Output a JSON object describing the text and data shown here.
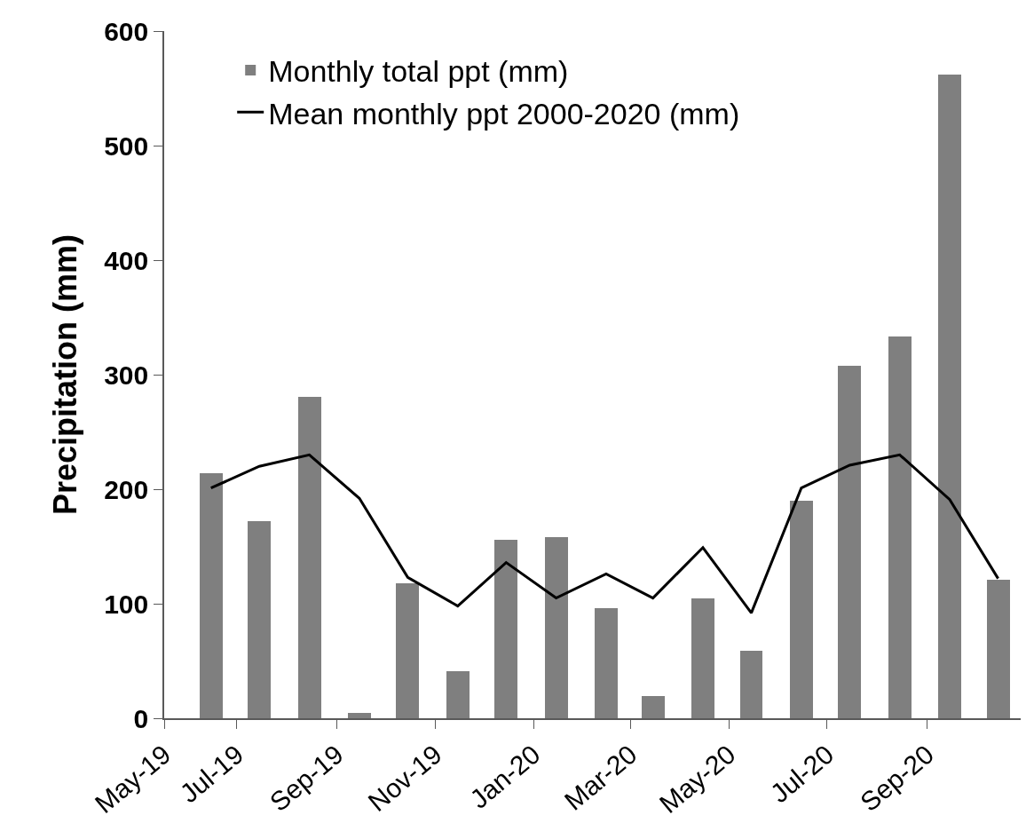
{
  "chart_data": {
    "type": "bar",
    "ylabel": "Precipitation (mm)",
    "x": [
      "2019-06-15",
      "2019-07-15",
      "2019-08-15",
      "2019-09-15",
      "2019-10-15",
      "2019-11-15",
      "2019-12-15",
      "2020-01-15",
      "2020-02-15",
      "2020-03-15",
      "2020-04-15",
      "2020-05-15",
      "2020-06-15",
      "2020-07-15",
      "2020-08-15",
      "2020-09-15",
      "2020-10-15"
    ],
    "series": [
      {
        "name": "Monthly total ppt (mm)",
        "color": "#7f7f7f",
        "values": [
          214,
          172,
          281,
          5,
          118,
          41,
          156,
          158,
          96,
          19,
          105,
          59,
          190,
          308,
          333,
          562,
          121
        ]
      },
      {
        "name": "Mean monthly ppt 2000-2020 (mm)",
        "type": "line",
        "color": "#000000",
        "line_style": "solid",
        "values": [
          201,
          220,
          230,
          192,
          123,
          98,
          136,
          105,
          126,
          105,
          149,
          92,
          201,
          221,
          230,
          191,
          122
        ]
      }
    ],
    "xlim": [
      "2019-05-17",
      "2020-10-29"
    ],
    "xticks": [
      {
        "value": "2019-05-17",
        "label": "May-19"
      },
      {
        "value": "2019-07-01",
        "label": "Jul-19"
      },
      {
        "value": "2019-09-01",
        "label": "Sep-19"
      },
      {
        "value": "2019-11-01",
        "label": "Nov-19"
      },
      {
        "value": "2020-01-01",
        "label": "Jan-20"
      },
      {
        "value": "2020-03-01",
        "label": "Mar-20"
      },
      {
        "value": "2020-05-01",
        "label": "May-20"
      },
      {
        "value": "2020-07-01",
        "label": "Jul-20"
      },
      {
        "value": "2020-09-01",
        "label": "Sep-20"
      }
    ],
    "ylim": [
      0,
      600
    ],
    "yticks": [
      0,
      100,
      200,
      300,
      400,
      500,
      600
    ],
    "grid": false,
    "legend": "top left",
    "marker": "none"
  }
}
